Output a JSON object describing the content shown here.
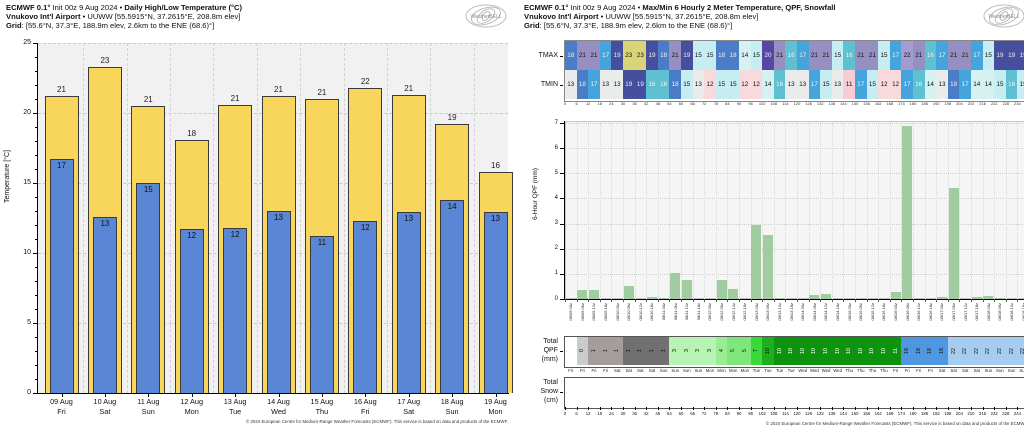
{
  "left": {
    "header": {
      "model": "ECMWF 0.1°",
      "init": " Init 00z 9 Aug 2024 • ",
      "title": "Daily High/Low Temperature (°C)",
      "station": "Vnukovo Int'l Airport",
      "station_rest": " • UUWW [55.5915°N, 37.2615°E, 208.8m elev]",
      "grid": "Grid",
      "grid_rest": ": [55.6°N, 37.3°E, 188.9m elev, 2.6km to the ENE (68.6)°]"
    },
    "y_axis_label": "Temperature [°C]",
    "y_ticks": [
      0,
      5,
      10,
      15,
      20,
      25
    ],
    "days": [
      {
        "date": "09 Aug",
        "dow": "Fri",
        "high_label": "21",
        "low_label": "17",
        "high": 21.2,
        "low": 16.7
      },
      {
        "date": "10 Aug",
        "dow": "Sat",
        "high_label": "23",
        "low_label": "13",
        "high": 23.3,
        "low": 12.6
      },
      {
        "date": "11 Aug",
        "dow": "Sun",
        "high_label": "21",
        "low_label": "15",
        "high": 20.5,
        "low": 15.0
      },
      {
        "date": "12 Aug",
        "dow": "Mon",
        "high_label": "18",
        "low_label": "12",
        "high": 18.1,
        "low": 11.7
      },
      {
        "date": "13 Aug",
        "dow": "Tue",
        "high_label": "21",
        "low_label": "12",
        "high": 20.6,
        "low": 11.8
      },
      {
        "date": "14 Aug",
        "dow": "Wed",
        "high_label": "21",
        "low_label": "13",
        "high": 21.2,
        "low": 13.0
      },
      {
        "date": "15 Aug",
        "dow": "Thu",
        "high_label": "21",
        "low_label": "11",
        "high": 21.0,
        "low": 11.2
      },
      {
        "date": "16 Aug",
        "dow": "Fri",
        "high_label": "22",
        "low_label": "12",
        "high": 21.8,
        "low": 12.3
      },
      {
        "date": "17 Aug",
        "dow": "Sat",
        "high_label": "21",
        "low_label": "13",
        "high": 21.3,
        "low": 12.9
      },
      {
        "date": "18 Aug",
        "dow": "Sun",
        "high_label": "19",
        "low_label": "14",
        "high": 19.2,
        "low": 13.8
      },
      {
        "date": "19 Aug",
        "dow": "Mon",
        "high_label": "16",
        "low_label": "13",
        "high": 15.8,
        "low": 12.9
      }
    ],
    "footer": "© 2024 European Centre for Medium-Range Weather Forecasts (ECMWF). This service is based on data and products of the ECMWF."
  },
  "right": {
    "header": {
      "model": "ECMWF 0.1°",
      "init": " Init 00z 9 Aug 2024 • ",
      "title": "Max/Min 6 Hourly 2 Meter Temperature,  QPF,  Snowfall",
      "station": "Vnukovo Int'l Airport",
      "station_rest": " • UUWW [55.5915°N, 37.2615°E, 208.8m elev]",
      "grid": "Grid",
      "grid_rest": ": [55.6°N, 37.3°E, 188.9m elev, 2.6km to the ENE (68.6)°]"
    },
    "rows": {
      "tmax_label": "TMAX",
      "tmin_label": "TMIN",
      "tmax": [
        18,
        21,
        21,
        17,
        19,
        23,
        23,
        19,
        18,
        21,
        19,
        15,
        15,
        18,
        18,
        14,
        15,
        20,
        21,
        16,
        17,
        21,
        21,
        15,
        16,
        21,
        21,
        15,
        17,
        22,
        21,
        16,
        17,
        21,
        21,
        17,
        15,
        19,
        19,
        19
      ],
      "tmin": [
        13,
        18,
        17,
        13,
        13,
        19,
        19,
        16,
        16,
        18,
        15,
        13,
        12,
        15,
        15,
        12,
        12,
        14,
        16,
        13,
        13,
        17,
        15,
        13,
        11,
        17,
        15,
        12,
        12,
        17,
        16,
        14,
        13,
        18,
        17,
        14,
        14,
        15,
        16,
        15
      ]
    },
    "hour_ticks": [
      0,
      6,
      12,
      18,
      24,
      30,
      36,
      42,
      48,
      54,
      60,
      66,
      72,
      78,
      84,
      90,
      96,
      102,
      108,
      114,
      120,
      126,
      132,
      138,
      144,
      150,
      156,
      162,
      168,
      174,
      180,
      186,
      192,
      198,
      204,
      210,
      216,
      222,
      228,
      234,
      240
    ],
    "qpf": {
      "axis_label": "6-Hour QPF (mm)",
      "y_ticks": [
        0,
        1,
        2,
        3,
        4,
        5,
        6,
        7
      ],
      "values": [
        0,
        0.37,
        0.37,
        0,
        0,
        0.5,
        0,
        0.08,
        0.05,
        1.05,
        0.77,
        0,
        0,
        0.77,
        0.41,
        0,
        2.93,
        2.53,
        0.05,
        0,
        0,
        0.17,
        0.2,
        0,
        0,
        0,
        0,
        0,
        0.27,
        6.9,
        0,
        0,
        0.1,
        4.4,
        0,
        0.08,
        0.13,
        0.05,
        0,
        0
      ]
    },
    "time_labels": [
      "08/09 00z",
      "08/09 06z",
      "08/09 12z",
      "08/09 18z",
      "08/10 00z",
      "08/10 06z",
      "08/10 12z",
      "08/10 18z",
      "08/11 00z",
      "08/11 06z",
      "08/11 12z",
      "08/11 18z",
      "08/12 00z",
      "08/12 06z",
      "08/12 12z",
      "08/12 18z",
      "08/13 00z",
      "08/13 06z",
      "08/13 12z",
      "08/13 18z",
      "08/14 00z",
      "08/14 06z",
      "08/14 12z",
      "08/14 18z",
      "08/15 00z",
      "08/15 06z",
      "08/15 12z",
      "08/15 18z",
      "08/16 00z",
      "08/16 06z",
      "08/16 12z",
      "08/16 18z",
      "08/17 00z",
      "08/17 06z",
      "08/17 12z",
      "08/17 18z",
      "08/18 00z",
      "08/18 06z",
      "08/18 12z",
      "08/18 18z"
    ],
    "total_qpf": {
      "label_lines": [
        "Total",
        "QPF",
        "(mm)"
      ],
      "values": [
        "",
        "0",
        "1",
        "1",
        "1",
        "1",
        "1",
        "1",
        "1",
        "3",
        "3",
        "3",
        "3",
        "4",
        "5",
        "5",
        "7",
        "10",
        "10",
        "10",
        "10",
        "10",
        "10",
        "10",
        "10",
        "10",
        "10",
        "10",
        "11",
        "18",
        "18",
        "18",
        "18",
        "22",
        "22",
        "22",
        "22",
        "22",
        "22",
        "22"
      ],
      "colors": [
        "#ffffff",
        "#cbcbcb",
        "#a59c9c",
        "#a59c9c",
        "#a59c9c",
        "#707070",
        "#707070",
        "#707070",
        "#707070",
        "#b7f3b2",
        "#b7f3b2",
        "#b7f3b2",
        "#b7f3b2",
        "#9aec94",
        "#7fe679",
        "#7fe679",
        "#3bd83b",
        "#1cb01c",
        "#0e930e",
        "#0e930e",
        "#0e930e",
        "#0e930e",
        "#0e930e",
        "#0e930e",
        "#0e930e",
        "#0e930e",
        "#0e930e",
        "#0e930e",
        "#0e930e",
        "#4f97e0",
        "#4f97e0",
        "#4f97e0",
        "#4f97e0",
        "#a6cdf0",
        "#a6cdf0",
        "#a6cdf0",
        "#a6cdf0",
        "#a6cdf0",
        "#a6cdf0",
        "#a6cdf0"
      ]
    },
    "day_labels": [
      "Fri",
      "Fri",
      "Fri",
      "Fri",
      "Sat",
      "Sat",
      "Sat",
      "Sat",
      "Sun",
      "Sun",
      "Sun",
      "Sun",
      "Mon",
      "Mon",
      "Mon",
      "Mon",
      "Tue",
      "Tue",
      "Tue",
      "Tue",
      "Wed",
      "Wed",
      "Wed",
      "Wed",
      "Thu",
      "Thu",
      "Thu",
      "Thu",
      "Fri",
      "Fri",
      "Fri",
      "Fri",
      "Sat",
      "Sat",
      "Sat",
      "Sat",
      "Sun",
      "Sun",
      "Sun",
      "Sun"
    ],
    "total_snow": {
      "label_lines": [
        "Total",
        "Snow",
        "(cm)"
      ]
    },
    "footer": "© 2024 European Centre for Medium-Range Weather Forecasts (ECMWF). This service is based on data and products of the ECMWF."
  },
  "palette": {
    "high_bar": "#f8d65c",
    "low_bar": "#5a87d5",
    "bar_border": "#3a3a3a",
    "qpf_bar": "#a1cba1",
    "chart_bg": "#f1f1f1",
    "qpf_bg": "#f5f5f5",
    "temp_colors": {
      "11": "#f7ccd4",
      "12": "#f8dadd",
      "13": "#e9ecea",
      "14": "#d6f1f1",
      "15": "#c6edf2",
      "16": "#5fc0d2",
      "17": "#46a4dc",
      "18": "#4a7cc8",
      "19": "#454f9e",
      "20": "#5847a2",
      "21": "#968fc2",
      "22": "#a49cce",
      "23": "#d9d478"
    },
    "temp_white_text": [
      16,
      17,
      18,
      19,
      20
    ],
    "total_white_text": [
      "#0e930e"
    ]
  },
  "chart_data": [
    {
      "type": "bar",
      "title": "Daily High/Low Temperature (°C)",
      "categories": [
        "09 Aug Fri",
        "10 Aug Sat",
        "11 Aug Sun",
        "12 Aug Mon",
        "13 Aug Tue",
        "14 Aug Wed",
        "15 Aug Thu",
        "16 Aug Fri",
        "17 Aug Sat",
        "18 Aug Sun",
        "19 Aug Mon"
      ],
      "series": [
        {
          "name": "Daily High",
          "values": [
            21,
            23,
            21,
            18,
            21,
            21,
            21,
            22,
            21,
            19,
            16
          ]
        },
        {
          "name": "Daily Low",
          "values": [
            17,
            13,
            15,
            12,
            12,
            13,
            11,
            12,
            13,
            14,
            13
          ]
        }
      ],
      "ylabel": "Temperature [°C]",
      "ylim": [
        0,
        25
      ],
      "grid": true,
      "legend": "none"
    },
    {
      "type": "heatmap",
      "title": "Max/Min 6 Hourly 2 Meter Temperature",
      "x_hours_start": 0,
      "x_hours_step": 6,
      "rows": [
        {
          "name": "TMAX",
          "values": [
            18,
            21,
            21,
            17,
            19,
            23,
            23,
            19,
            18,
            21,
            19,
            15,
            15,
            18,
            18,
            14,
            15,
            20,
            21,
            16,
            17,
            21,
            21,
            15,
            16,
            21,
            21,
            15,
            17,
            22,
            21,
            16,
            17,
            21,
            21,
            17,
            15,
            19,
            19,
            19
          ]
        },
        {
          "name": "TMIN",
          "values": [
            13,
            18,
            17,
            13,
            13,
            19,
            19,
            16,
            16,
            18,
            15,
            13,
            12,
            15,
            15,
            12,
            12,
            14,
            16,
            13,
            13,
            17,
            15,
            13,
            11,
            17,
            15,
            12,
            12,
            17,
            16,
            14,
            13,
            18,
            17,
            14,
            14,
            15,
            16,
            15
          ]
        }
      ]
    },
    {
      "type": "bar",
      "title": "6-Hour QPF (mm)",
      "x_hours_start": 0,
      "x_hours_step": 6,
      "values": [
        0,
        0.37,
        0.37,
        0,
        0,
        0.5,
        0,
        0.08,
        0.05,
        1.05,
        0.77,
        0,
        0,
        0.77,
        0.41,
        0,
        2.93,
        2.53,
        0.05,
        0,
        0,
        0.17,
        0.2,
        0,
        0,
        0,
        0,
        0,
        0.27,
        6.9,
        0,
        0,
        0.1,
        4.4,
        0,
        0.08,
        0.13,
        0.05,
        0,
        0
      ],
      "ylim": [
        0,
        7
      ]
    },
    {
      "type": "table",
      "title": "Total QPF (mm)",
      "values": [
        0,
        0,
        1,
        1,
        1,
        1,
        1,
        1,
        1,
        3,
        3,
        3,
        3,
        4,
        5,
        5,
        7,
        10,
        10,
        10,
        10,
        10,
        10,
        10,
        10,
        10,
        10,
        10,
        11,
        18,
        18,
        18,
        18,
        22,
        22,
        22,
        22,
        22,
        22,
        22
      ]
    },
    {
      "type": "table",
      "title": "Total Snow (cm)",
      "values": []
    }
  ]
}
